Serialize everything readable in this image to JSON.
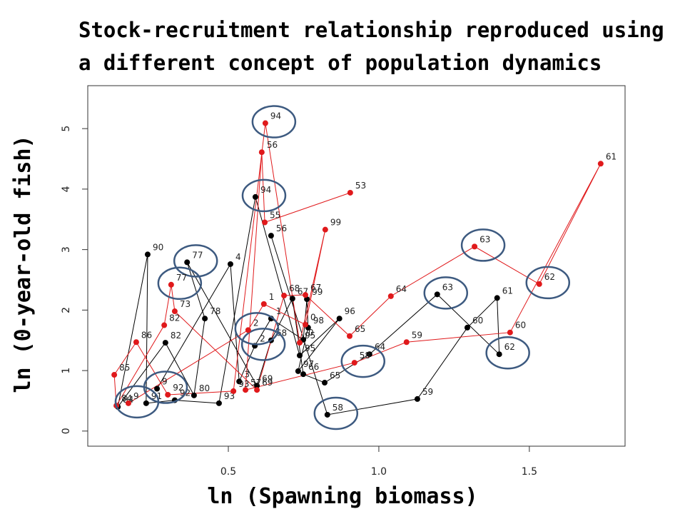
{
  "chart_data": {
    "type": "line",
    "title": [
      "Stock-recruitment relationship reproduced using",
      "a different concept of population dynamics"
    ],
    "x_label": "ln (Spawning biomass)",
    "y_label": "ln (0-year-old fish)",
    "xlim": [
      0.033,
      1.818
    ],
    "ylim": [
      -0.25,
      5.71
    ],
    "xticks": [
      0.5,
      {
        "value": 1,
        "label": "1.0"
      },
      1.5
    ],
    "yticks": [
      0,
      1,
      2,
      3,
      4,
      5
    ],
    "grid": false,
    "series": [
      {
        "color": "#000000",
        "labels": [
          "56",
          "58",
          "59",
          "60",
          "61",
          "62",
          "63",
          "64",
          "65",
          "66",
          "67",
          "68",
          "69",
          "77",
          "78",
          "80",
          "82",
          "84",
          "90",
          "91",
          "92",
          "93",
          "94",
          "95",
          "96",
          "97",
          "98",
          "99",
          "0",
          "1",
          "2",
          "3",
          "4",
          "9"
        ],
        "x": [
          0.642,
          0.829,
          1.128,
          1.294,
          1.393,
          1.4,
          1.194,
          0.969,
          0.82,
          0.749,
          0.713,
          0.642,
          0.595,
          0.363,
          0.422,
          0.386,
          0.291,
          0.133,
          0.232,
          0.227,
          0.322,
          0.469,
          0.59,
          0.737,
          0.869,
          0.732,
          0.765,
          0.761,
          0.749,
          0.642,
          0.588,
          0.536,
          0.507,
          0.263
        ],
        "values": [
          3.23,
          0.27,
          0.53,
          1.71,
          2.2,
          1.27,
          2.26,
          1.27,
          0.8,
          0.94,
          2.19,
          1.5,
          0.75,
          2.79,
          1.86,
          0.59,
          1.46,
          0.4,
          2.92,
          0.46,
          0.51,
          0.46,
          3.87,
          1.25,
          1.86,
          0.99,
          1.71,
          2.18,
          1.51,
          1.86,
          1.41,
          0.82,
          2.76,
          0.7
        ],
        "circled": [
          1,
          5,
          6,
          13,
          22,
          30,
          33
        ]
      },
      {
        "color": "#e0191b",
        "labels": [
          "53",
          "55",
          "56",
          "57",
          "58",
          "59",
          "60",
          "61",
          "62",
          "63",
          "64",
          "65",
          "67",
          "68",
          "69",
          "73",
          "77",
          "82",
          "84",
          "85",
          "86",
          "92",
          "93",
          "94",
          "95",
          "99",
          "0",
          "1",
          "2",
          "9"
        ],
        "x": [
          0.905,
          0.621,
          0.611,
          0.557,
          0.919,
          1.092,
          1.436,
          1.737,
          1.533,
          1.318,
          1.04,
          0.903,
          0.756,
          0.685,
          0.595,
          0.322,
          0.31,
          0.287,
          0.128,
          0.121,
          0.194,
          0.299,
          0.517,
          0.623,
          0.737,
          0.822,
          0.756,
          0.618,
          0.566,
          0.168
        ],
        "values": [
          3.94,
          3.45,
          4.61,
          0.68,
          1.13,
          1.47,
          1.63,
          4.42,
          2.43,
          3.05,
          2.23,
          1.57,
          2.25,
          2.24,
          0.68,
          1.98,
          2.42,
          1.75,
          0.42,
          0.93,
          1.47,
          0.6,
          0.66,
          5.09,
          1.46,
          3.33,
          1.76,
          2.1,
          1.67,
          0.46
        ],
        "circled": [
          4,
          8,
          9,
          16,
          23,
          28,
          29
        ]
      }
    ]
  }
}
